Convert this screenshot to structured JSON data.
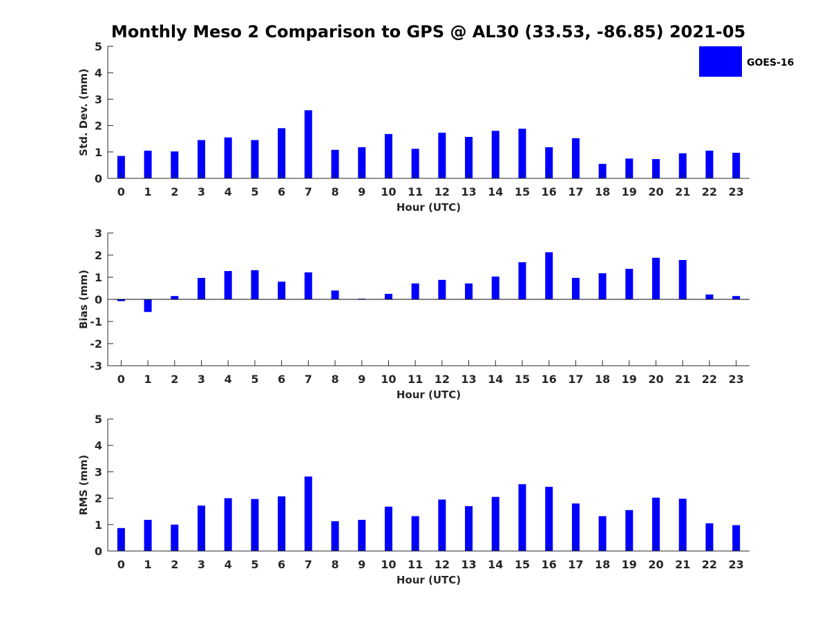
{
  "chart_data": {
    "title": "Monthly Meso 2 Comparison to GPS @ AL30 (33.53, -86.85) 2021-05",
    "legend": {
      "label": "GOES-16",
      "placement": "top-right",
      "color": "#0000ff"
    },
    "bar_color": "#0000ff",
    "panels": [
      {
        "type": "bar",
        "ylabel": "Std. Dev. (mm)",
        "xlabel": "Hour (UTC)",
        "ylim": [
          0,
          5
        ],
        "yticks": [
          "0",
          "1",
          "2",
          "3",
          "4",
          "5"
        ],
        "categories": [
          "0",
          "1",
          "2",
          "3",
          "4",
          "5",
          "6",
          "7",
          "8",
          "9",
          "10",
          "11",
          "12",
          "13",
          "14",
          "15",
          "16",
          "17",
          "18",
          "19",
          "20",
          "21",
          "22",
          "23"
        ],
        "series": [
          {
            "name": "GOES-16",
            "values": [
              0.85,
              1.05,
              1.02,
              1.45,
              1.55,
              1.45,
              1.9,
              2.58,
              1.08,
              1.18,
              1.68,
              1.12,
              1.73,
              1.57,
              1.8,
              1.88,
              1.18,
              1.52,
              0.55,
              0.75,
              0.73,
              0.95,
              1.05,
              0.97
            ]
          }
        ]
      },
      {
        "type": "bar",
        "ylabel": "Bias (mm)",
        "xlabel": "Hour (UTC)",
        "ylim": [
          -3,
          3
        ],
        "yticks": [
          "-3",
          "-2",
          "-1",
          "0",
          "1",
          "2",
          "3"
        ],
        "categories": [
          "0",
          "1",
          "2",
          "3",
          "4",
          "5",
          "6",
          "7",
          "8",
          "9",
          "10",
          "11",
          "12",
          "13",
          "14",
          "15",
          "16",
          "17",
          "18",
          "19",
          "20",
          "21",
          "22",
          "23"
        ],
        "series": [
          {
            "name": "GOES-16",
            "values": [
              -0.08,
              -0.57,
              0.15,
              0.97,
              1.28,
              1.32,
              0.8,
              1.22,
              0.4,
              0.03,
              0.25,
              0.72,
              0.88,
              0.72,
              1.03,
              1.68,
              2.13,
              0.97,
              1.18,
              1.38,
              1.88,
              1.78,
              0.22,
              0.15
            ]
          }
        ]
      },
      {
        "type": "bar",
        "ylabel": "RMS (mm)",
        "xlabel": "Hour (UTC)",
        "ylim": [
          0,
          5
        ],
        "yticks": [
          "0",
          "1",
          "2",
          "3",
          "4",
          "5"
        ],
        "categories": [
          "0",
          "1",
          "2",
          "3",
          "4",
          "5",
          "6",
          "7",
          "8",
          "9",
          "10",
          "11",
          "12",
          "13",
          "14",
          "15",
          "16",
          "17",
          "18",
          "19",
          "20",
          "21",
          "22",
          "23"
        ],
        "series": [
          {
            "name": "GOES-16",
            "values": [
              0.87,
              1.18,
              1.0,
              1.72,
              2.0,
              1.97,
              2.07,
              2.82,
              1.13,
              1.18,
              1.68,
              1.32,
              1.95,
              1.7,
              2.05,
              2.53,
              2.43,
              1.8,
              1.32,
              1.55,
              2.02,
              1.98,
              1.05,
              0.98
            ]
          }
        ]
      }
    ]
  }
}
